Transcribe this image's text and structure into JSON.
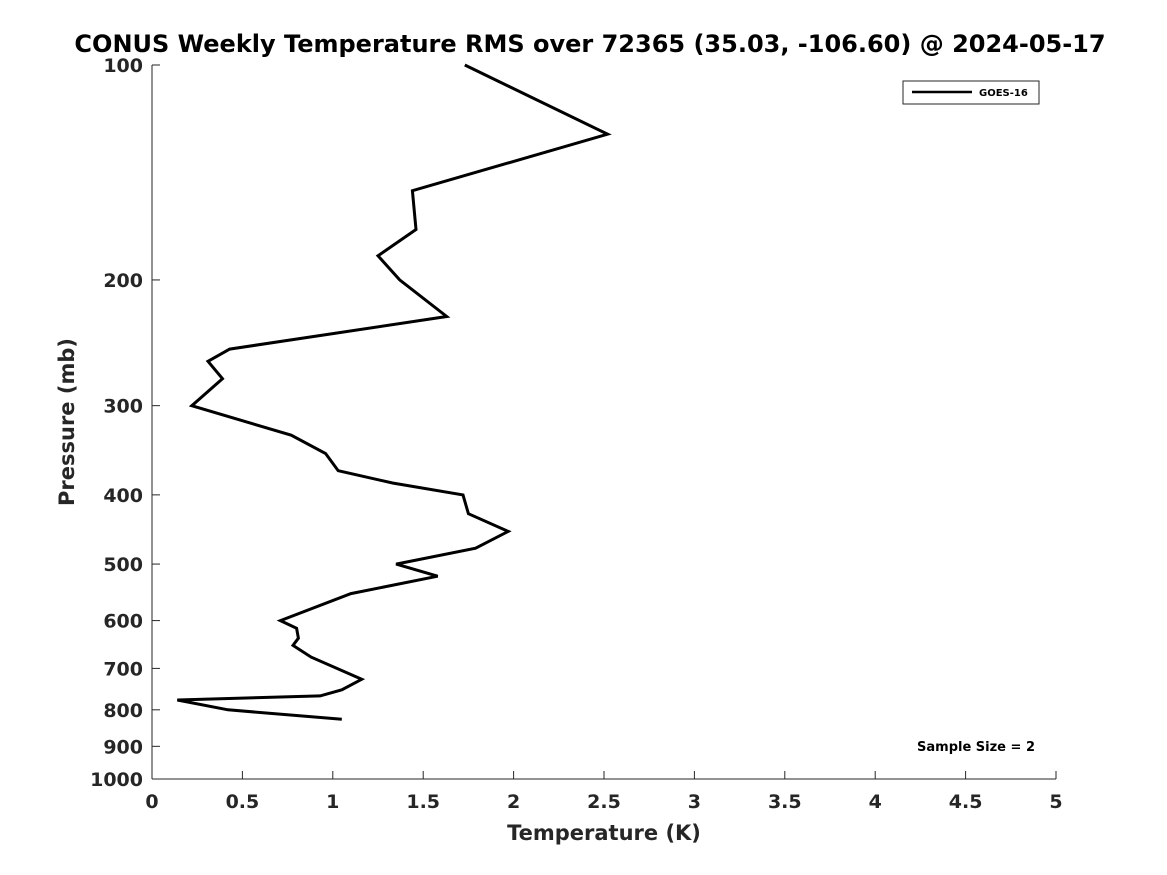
{
  "chart_data": {
    "type": "line",
    "title": "CONUS Weekly Temperature RMS over 72365 (35.03, -106.60) @ 2024-05-17",
    "xlabel": "Temperature (K)",
    "ylabel": "Pressure (mb)",
    "xlim": [
      0,
      5
    ],
    "ylim": [
      100,
      1000
    ],
    "y_scale": "log",
    "y_reversed": true,
    "x_ticks": [
      0,
      0.5,
      1,
      1.5,
      2,
      2.5,
      3,
      3.5,
      4,
      4.5,
      5
    ],
    "x_tick_labels": [
      "0",
      "0.5",
      "1",
      "1.5",
      "2",
      "2.5",
      "3",
      "3.5",
      "4",
      "4.5",
      "5"
    ],
    "y_ticks": [
      100,
      200,
      300,
      400,
      500,
      600,
      700,
      800,
      900,
      1000
    ],
    "y_tick_labels": [
      "100",
      "200",
      "300",
      "400",
      "500",
      "600",
      "700",
      "800",
      "900",
      "1000"
    ],
    "grid": false,
    "legend_position": "top-right",
    "series": [
      {
        "name": "GOES-16",
        "color": "#000000",
        "x": [
          1.73,
          2.52,
          1.44,
          1.46,
          1.25,
          1.37,
          1.63,
          0.43,
          0.31,
          0.39,
          0.22,
          0.77,
          0.96,
          1.03,
          1.33,
          1.72,
          1.75,
          1.97,
          1.79,
          1.35,
          1.58,
          1.1,
          0.71,
          0.8,
          0.81,
          0.78,
          0.88,
          1.16,
          1.05,
          0.93,
          0.14,
          0.42,
          1.05
        ],
        "y": [
          100,
          125,
          150,
          170,
          185,
          200,
          225,
          250,
          260,
          275,
          300,
          330,
          350,
          370,
          385,
          400,
          425,
          450,
          475,
          500,
          520,
          550,
          600,
          615,
          635,
          650,
          675,
          725,
          750,
          765,
          775,
          800,
          825
        ]
      }
    ],
    "annotations": [
      "Sample Size = 2"
    ]
  }
}
